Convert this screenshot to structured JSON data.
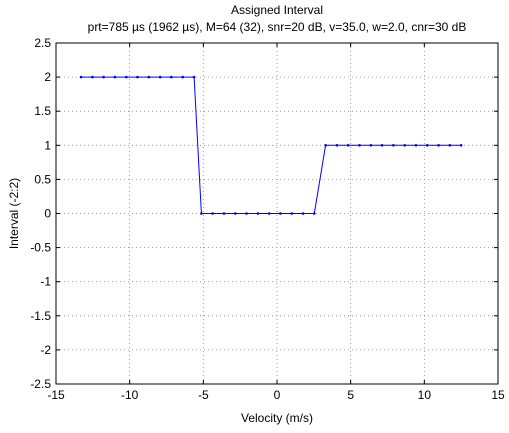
{
  "chart_data": {
    "type": "line",
    "title": "Assigned Interval",
    "subtitle": "prt=785 µs (1962 µs), M=64 (32), snr=20 dB, v=35.0, w=2.0, cnr=30 dB",
    "xlabel": "Velocity (m/s)",
    "ylabel": "Interval (-2:2)",
    "xlim": [
      -15,
      15
    ],
    "ylim": [
      -2.5,
      2.5
    ],
    "xticks": [
      -15,
      -10,
      -5,
      0,
      5,
      10,
      15
    ],
    "yticks": [
      -2.5,
      -2,
      -1.5,
      -1,
      -0.5,
      0,
      0.5,
      1,
      1.5,
      2,
      2.5
    ],
    "xtick_labels": [
      "-15",
      "-10",
      "-5",
      "0",
      "5",
      "10",
      "15"
    ],
    "ytick_labels": [
      "-2.5",
      "-2",
      "-1.5",
      "-1",
      "-0.5",
      "0",
      "0.5",
      "1",
      "1.5",
      "2",
      "2.5"
    ],
    "grid": true,
    "series": [
      {
        "color": "#0000ff",
        "marker": "dot",
        "x": [
          -13.3,
          -12.53,
          -11.77,
          -11.0,
          -10.23,
          -9.47,
          -8.7,
          -7.93,
          -7.17,
          -6.4,
          -5.63,
          -5.13,
          -4.37,
          -3.6,
          -2.83,
          -2.07,
          -1.3,
          -0.53,
          0.23,
          1.0,
          1.77,
          2.53,
          3.3,
          4.07,
          4.83,
          5.6,
          6.37,
          7.13,
          7.9,
          8.67,
          9.43,
          10.2,
          10.97,
          11.73,
          12.5
        ],
        "y": [
          2,
          2,
          2,
          2,
          2,
          2,
          2,
          2,
          2,
          2,
          2,
          0,
          0,
          0,
          0,
          0,
          0,
          0,
          0,
          0,
          0,
          0,
          1,
          1,
          1,
          1,
          1,
          1,
          1,
          1,
          1,
          1,
          1,
          1,
          1
        ]
      }
    ]
  }
}
